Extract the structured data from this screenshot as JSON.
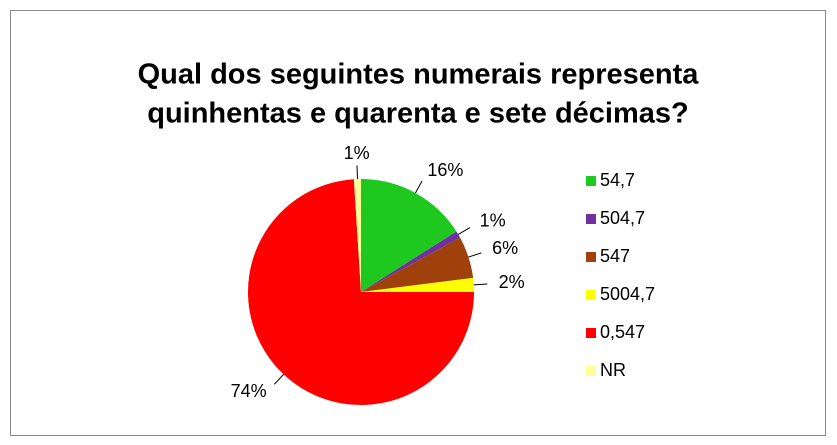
{
  "chart_data": {
    "type": "pie",
    "title": [
      "Qual dos seguintes numerais representa",
      "quinhentas e quarenta e sete décimas?"
    ],
    "categories": [
      "54,7",
      "504,7",
      "547",
      "5004,7",
      "0,547",
      "NR"
    ],
    "values": [
      16,
      1,
      6,
      2,
      74,
      1
    ],
    "value_labels": [
      "16%",
      "1%",
      "6%",
      "2%",
      "74%",
      "1%"
    ],
    "colors": [
      "#1ec81e",
      "#7030a0",
      "#a0400a",
      "#ffff00",
      "#ff0000",
      "#ffff99"
    ],
    "legend": "right"
  }
}
